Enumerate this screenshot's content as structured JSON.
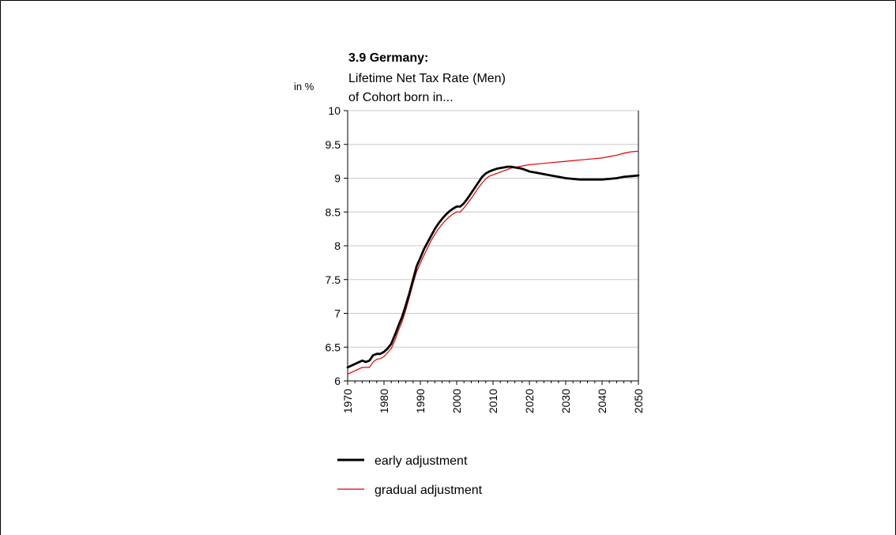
{
  "chart_data": {
    "type": "line",
    "title": "3.9 Germany:",
    "subtitle_lines": [
      "Lifetime Net Tax Rate (Men)",
      "of Cohort born in..."
    ],
    "ylabel": "in %",
    "xlabel": "",
    "xlim": [
      1970,
      2050
    ],
    "ylim": [
      6,
      10
    ],
    "x_ticks": [
      "1970",
      "1980",
      "1990",
      "2000",
      "2010",
      "2020",
      "2030",
      "2040",
      "2050"
    ],
    "y_ticks": [
      "6",
      "6.5",
      "7",
      "7.5",
      "8",
      "8.5",
      "9",
      "9.5",
      "10"
    ],
    "grid": "horizontal",
    "legend_position": "bottom",
    "series": [
      {
        "name": "early adjustment",
        "color": "#000000",
        "line_style": "thick",
        "x": [
          1970,
          1972,
          1974,
          1975,
          1976,
          1977,
          1978,
          1979,
          1980,
          1981,
          1982,
          1983,
          1984,
          1985,
          1986,
          1987,
          1988,
          1989,
          1990,
          1991,
          1992,
          1993,
          1994,
          1995,
          1996,
          1997,
          1998,
          1999,
          2000,
          2001,
          2002,
          2003,
          2004,
          2005,
          2006,
          2007,
          2008,
          2009,
          2010,
          2011,
          2012,
          2013,
          2014,
          2015,
          2016,
          2017,
          2018,
          2019,
          2020,
          2022,
          2024,
          2026,
          2028,
          2030,
          2032,
          2034,
          2036,
          2038,
          2040,
          2042,
          2044,
          2046,
          2048,
          2050
        ],
        "values": [
          6.2,
          6.25,
          6.3,
          6.28,
          6.3,
          6.38,
          6.4,
          6.4,
          6.43,
          6.48,
          6.55,
          6.68,
          6.82,
          6.95,
          7.12,
          7.3,
          7.5,
          7.7,
          7.82,
          7.95,
          8.05,
          8.15,
          8.25,
          8.33,
          8.4,
          8.46,
          8.51,
          8.55,
          8.58,
          8.58,
          8.63,
          8.7,
          8.78,
          8.86,
          8.94,
          9.02,
          9.07,
          9.1,
          9.12,
          9.14,
          9.15,
          9.16,
          9.17,
          9.17,
          9.16,
          9.15,
          9.14,
          9.12,
          9.1,
          9.08,
          9.06,
          9.04,
          9.02,
          9.0,
          8.99,
          8.98,
          8.98,
          8.98,
          8.98,
          8.99,
          9.0,
          9.02,
          9.03,
          9.04
        ]
      },
      {
        "name": "gradual adjustment",
        "color": "#e00000",
        "line_style": "thin",
        "x": [
          1970,
          1972,
          1974,
          1975,
          1976,
          1977,
          1978,
          1979,
          1980,
          1981,
          1982,
          1983,
          1984,
          1985,
          1986,
          1987,
          1988,
          1989,
          1990,
          1991,
          1992,
          1993,
          1994,
          1995,
          1996,
          1997,
          1998,
          1999,
          2000,
          2001,
          2002,
          2003,
          2004,
          2005,
          2006,
          2007,
          2008,
          2009,
          2010,
          2011,
          2012,
          2013,
          2014,
          2015,
          2016,
          2017,
          2018,
          2019,
          2020,
          2022,
          2024,
          2026,
          2028,
          2030,
          2032,
          2034,
          2036,
          2038,
          2040,
          2042,
          2044,
          2046,
          2048,
          2050
        ],
        "values": [
          6.1,
          6.15,
          6.2,
          6.2,
          6.2,
          6.28,
          6.32,
          6.33,
          6.36,
          6.42,
          6.48,
          6.6,
          6.75,
          6.88,
          7.05,
          7.24,
          7.44,
          7.62,
          7.74,
          7.86,
          7.97,
          8.08,
          8.17,
          8.25,
          8.32,
          8.38,
          8.43,
          8.47,
          8.5,
          8.5,
          8.56,
          8.63,
          8.7,
          8.78,
          8.86,
          8.93,
          8.99,
          9.03,
          9.05,
          9.07,
          9.09,
          9.11,
          9.13,
          9.15,
          9.16,
          9.17,
          9.18,
          9.19,
          9.2,
          9.21,
          9.22,
          9.23,
          9.24,
          9.25,
          9.26,
          9.27,
          9.28,
          9.29,
          9.3,
          9.32,
          9.34,
          9.37,
          9.39,
          9.4
        ]
      }
    ]
  }
}
